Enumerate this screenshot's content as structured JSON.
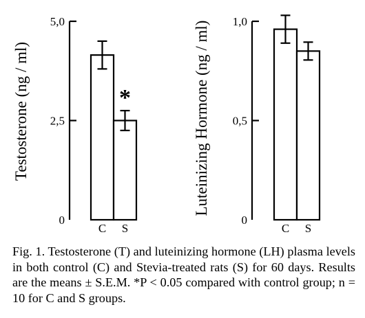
{
  "caption": "Fig. 1. Testosterone (T) and luteinizing hormone (LH) plasma levels in both control (C) and Stevia-treated rats (S) for 60 days. Results are the means ± S.E.M. *P < 0.05 compared with control group; n = 10 for C and S groups.",
  "chart_data": [
    {
      "type": "bar",
      "categories": [
        "C",
        "S"
      ],
      "values": [
        4.15,
        2.5
      ],
      "errors": [
        0.35,
        0.25
      ],
      "ylabel": "Testosterone (ng / ml)",
      "ylim": [
        0,
        5.0
      ],
      "yticks": [
        0,
        2.5,
        5.0
      ],
      "ytick_labels": [
        "0",
        "2,5",
        "5,0"
      ],
      "annotations": [
        {
          "category": "S",
          "text": "*"
        }
      ],
      "grid": false
    },
    {
      "type": "bar",
      "categories": [
        "C",
        "S"
      ],
      "values": [
        0.96,
        0.85
      ],
      "errors": [
        0.07,
        0.045
      ],
      "ylabel": "Luteinizing Hormone (ng / ml)",
      "ylim": [
        0,
        1.0
      ],
      "yticks": [
        0,
        0.5,
        1.0
      ],
      "ytick_labels": [
        "0",
        "0,5",
        "1,0"
      ],
      "annotations": [],
      "grid": false
    }
  ]
}
